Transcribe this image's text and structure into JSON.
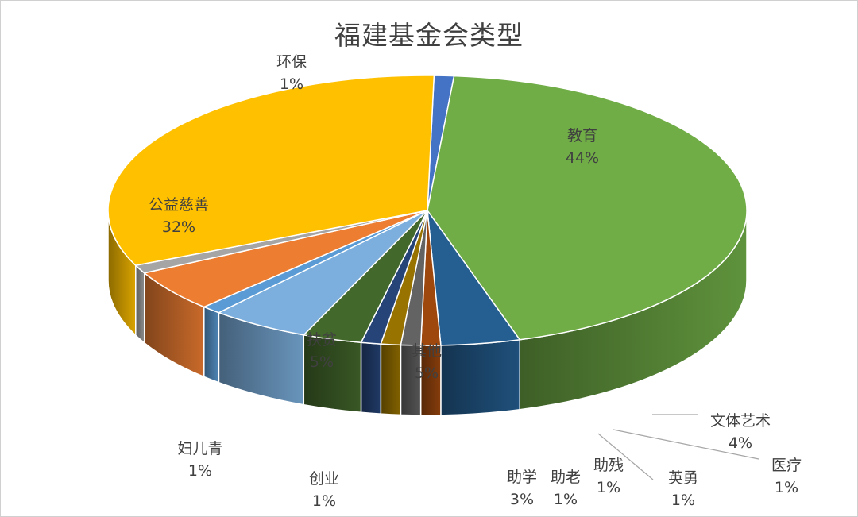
{
  "chart_data": {
    "type": "pie",
    "title": "福建基金会类型",
    "slices": [
      {
        "name": "环保",
        "label": "1%",
        "value": 1,
        "color": "#4472C4"
      },
      {
        "name": "教育",
        "label": "44%",
        "value": 44,
        "color": "#70AD47"
      },
      {
        "name": "文体艺术",
        "label": "4%",
        "value": 4,
        "color": "#255E91"
      },
      {
        "name": "医疗",
        "label": "1%",
        "value": 1,
        "color": "#9E480E"
      },
      {
        "name": "英勇",
        "label": "1%",
        "value": 1,
        "color": "#636363"
      },
      {
        "name": "助残",
        "label": "1%",
        "value": 1,
        "color": "#997300"
      },
      {
        "name": "助老",
        "label": "1%",
        "value": 1,
        "color": "#264478"
      },
      {
        "name": "助学",
        "label": "3%",
        "value": 3,
        "color": "#43682B"
      },
      {
        "name": "其他",
        "label": "5%",
        "value": 5,
        "color": "#7CAFDD"
      },
      {
        "name": "创业",
        "label": "1%",
        "value": 1,
        "color": "#5B9BD5"
      },
      {
        "name": "扶贫",
        "label": "5%",
        "value": 5,
        "color": "#ED7D31"
      },
      {
        "name": "妇儿青",
        "label": "1%",
        "value": 1,
        "color": "#A5A5A5"
      },
      {
        "name": "公益慈善",
        "label": "32%",
        "value": 32,
        "color": "#FFC000"
      }
    ]
  }
}
